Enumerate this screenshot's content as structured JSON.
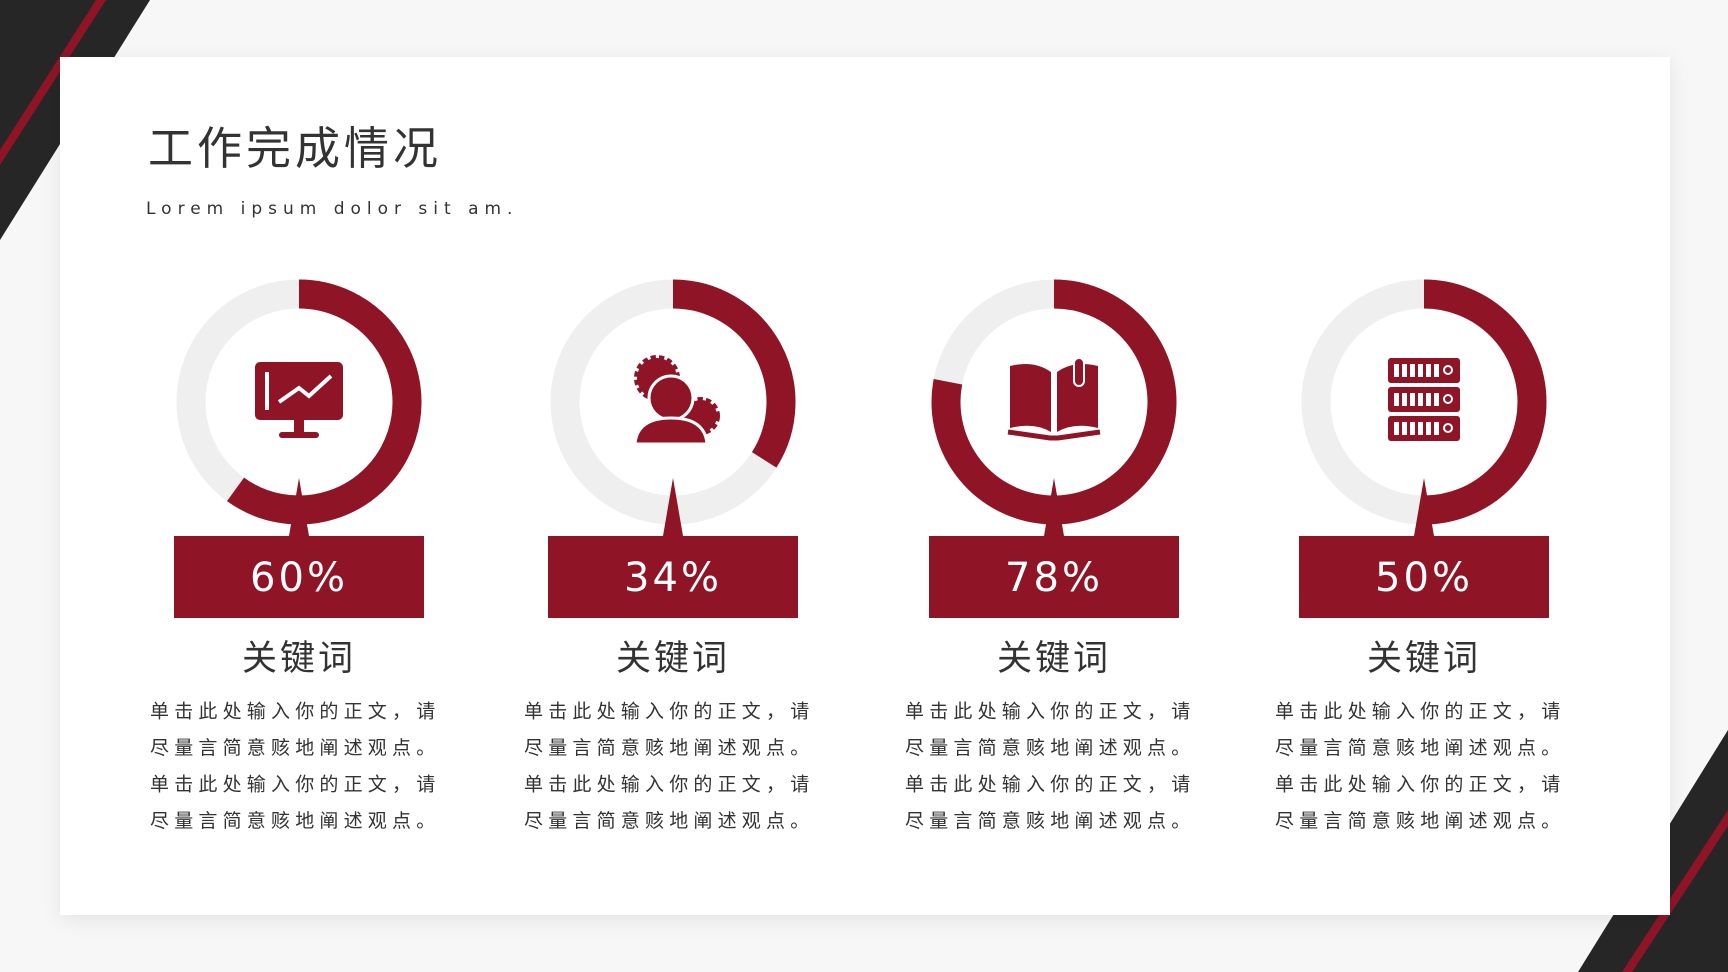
{
  "title": "工作完成情况",
  "subtitle": "Lorem ipsum dolor sit am.",
  "chart_data": [
    {
      "type": "donut",
      "title": "关键词",
      "values": [
        60
      ],
      "value_labels": [
        "60%"
      ],
      "ylim": [
        0,
        100
      ],
      "color": "#8f1426",
      "track_color": "#efefef",
      "description": [
        "单击此处输入你的正文，请",
        "尽量言简意赅地阐述观点。",
        "单击此处输入你的正文，请",
        "尽量言简意赅地阐述观点。"
      ]
    },
    {
      "type": "donut",
      "title": "关键词",
      "values": [
        34
      ],
      "value_labels": [
        "34%"
      ],
      "ylim": [
        0,
        100
      ],
      "color": "#8f1426",
      "track_color": "#efefef",
      "description": [
        "单击此处输入你的正文，请",
        "尽量言简意赅地阐述观点。",
        "单击此处输入你的正文，请",
        "尽量言简意赅地阐述观点。"
      ]
    },
    {
      "type": "donut",
      "title": "关键词",
      "values": [
        78
      ],
      "value_labels": [
        "78%"
      ],
      "ylim": [
        0,
        100
      ],
      "color": "#8f1426",
      "track_color": "#efefef",
      "description": [
        "单击此处输入你的正文，请",
        "尽量言简意赅地阐述观点。",
        "单击此处输入你的正文，请",
        "尽量言简意赅地阐述观点。"
      ]
    },
    {
      "type": "donut",
      "title": "关键词",
      "values": [
        50
      ],
      "value_labels": [
        "50%"
      ],
      "ylim": [
        0,
        100
      ],
      "color": "#8f1426",
      "track_color": "#efefef",
      "description": [
        "单击此处输入你的正文，请",
        "尽量言简意赅地阐述观点。",
        "单击此处输入你的正文，请",
        "尽量言简意赅地阐述观点。"
      ]
    }
  ]
}
